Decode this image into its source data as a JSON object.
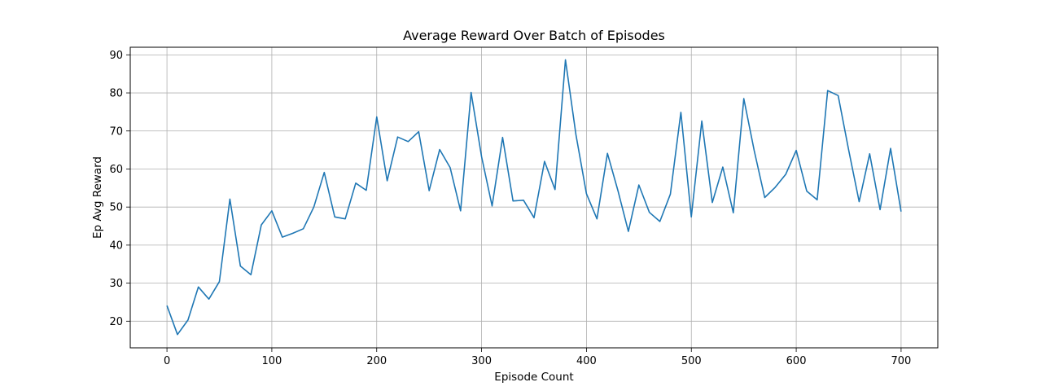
{
  "chart_data": {
    "type": "line",
    "title": "Average Reward Over Batch of Episodes",
    "xlabel": "Episode Count",
    "ylabel": "Ep Avg Reward",
    "xlim": [
      -35,
      735
    ],
    "ylim": [
      13,
      92
    ],
    "xticks": [
      0,
      100,
      200,
      300,
      400,
      500,
      600,
      700
    ],
    "yticks": [
      20,
      30,
      40,
      50,
      60,
      70,
      80,
      90
    ],
    "grid": true,
    "line_color": "#1f77b4",
    "series": [
      {
        "x": [
          0,
          10,
          20,
          30,
          40,
          50,
          60,
          70,
          80,
          90,
          100,
          110,
          120,
          130,
          140,
          150,
          160,
          170,
          180,
          190,
          200,
          210,
          220,
          230,
          240,
          250,
          260,
          270,
          280,
          290,
          300,
          310,
          320,
          330,
          340,
          350,
          360,
          370,
          380,
          390,
          400,
          410,
          420,
          430,
          440,
          450,
          460,
          470,
          480,
          490,
          500,
          510,
          520,
          530,
          540,
          550,
          560,
          570,
          580,
          590,
          600,
          610,
          620,
          630,
          640,
          650,
          660,
          670,
          680,
          690,
          700
        ],
        "y": [
          24.1,
          16.5,
          20.3,
          29.0,
          25.8,
          30.4,
          52.1,
          34.5,
          32.2,
          45.3,
          49.0,
          42.1,
          43.1,
          44.3,
          50.0,
          59.1,
          47.4,
          46.9,
          56.3,
          54.4,
          73.7,
          56.9,
          68.4,
          67.2,
          69.8,
          54.3,
          65.1,
          60.4,
          49.0,
          80.1,
          63.2,
          50.3,
          68.3,
          51.6,
          51.8,
          47.2,
          62.0,
          54.6,
          88.7,
          69.0,
          53.5,
          46.9,
          64.1,
          54.3,
          43.6,
          55.8,
          48.6,
          46.2,
          53.4,
          74.9,
          47.4,
          72.6,
          51.2,
          60.5,
          48.5,
          78.5,
          64.8,
          52.5,
          55.2,
          58.6,
          64.9,
          54.2,
          51.9,
          80.6,
          79.3,
          65.0,
          51.4,
          64.0,
          49.3,
          65.4,
          48.8
        ]
      }
    ]
  }
}
